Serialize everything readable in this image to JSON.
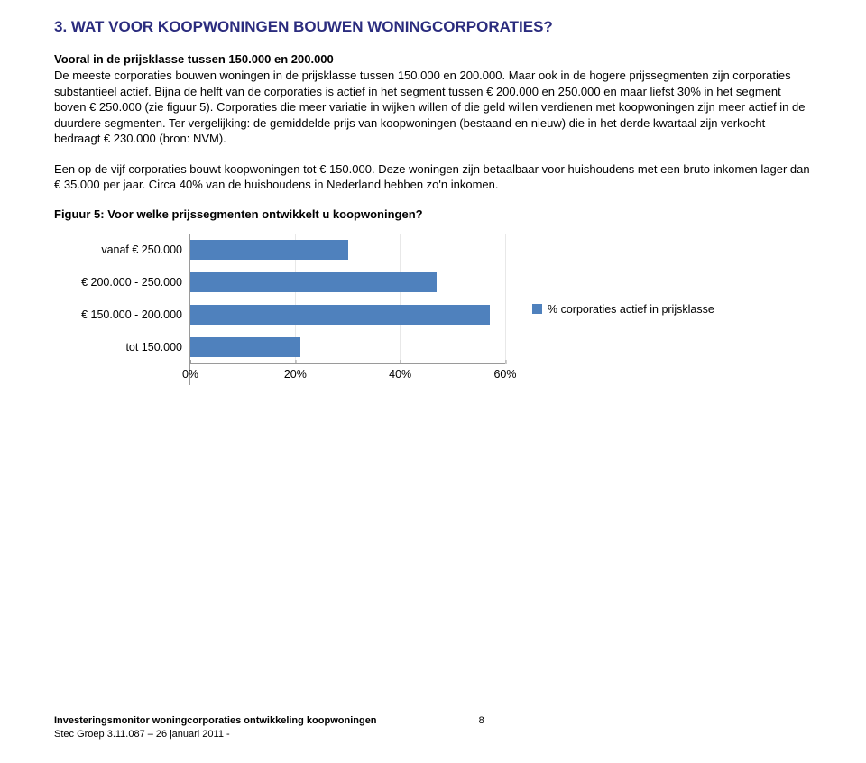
{
  "heading": "3. WAT VOOR KOOPWONINGEN BOUWEN WONINGCORPORATIES?",
  "lead": "Vooral in de prijsklasse tussen 150.000 en 200.000",
  "para1": "De meeste corporaties bouwen woningen in de prijsklasse tussen 150.000 en 200.000. Maar ook in de hogere prijssegmenten zijn corporaties substantieel actief. Bijna de helft van de corporaties is actief in het segment tussen € 200.000 en 250.000 en maar liefst 30% in het segment boven € 250.000 (zie figuur 5). Corporaties die meer variatie in wijken willen of die geld willen verdienen met koopwoningen zijn meer actief in de duurdere segmenten. Ter vergelijking: de gemiddelde prijs van koopwoningen (bestaand en nieuw) die in het derde kwartaal zijn verkocht bedraagt € 230.000 (bron: NVM).",
  "para2": "Een op de vijf corporaties bouwt koopwoningen tot € 150.000. Deze woningen zijn betaalbaar voor huishoudens met een bruto inkomen lager dan € 35.000 per jaar. Circa 40% van de huishoudens in Nederland hebben zo'n inkomen.",
  "figure_title": "Figuur 5: Voor welke prijssegmenten ontwikkelt u koopwoningen?",
  "chart": {
    "type": "bar-horizontal",
    "xmax": 60,
    "ticks": [
      0,
      20,
      40,
      60
    ],
    "tick_labels": [
      "0%",
      "20%",
      "40%",
      "60%"
    ],
    "bar_color": "#4f81bd",
    "grid_color": "#e8e8e8",
    "axis_color": "#9a9a9a",
    "label_fontsize": 12.5,
    "categories": [
      {
        "label": "vanaf € 250.000",
        "value": 30
      },
      {
        "label": "€ 200.000 - 250.000",
        "value": 47
      },
      {
        "label": "€ 150.000 - 200.000",
        "value": 57
      },
      {
        "label": "tot 150.000",
        "value": 21
      }
    ],
    "legend": "% corporaties actief in prijsklasse"
  },
  "footer": {
    "line1": "Investeringsmonitor woningcorporaties ontwikkeling koopwoningen",
    "page": "8",
    "line2": "Stec Groep 3.11.087 – 26 januari 2011 -"
  },
  "colors": {
    "heading": "#2b2c7e",
    "text": "#000000",
    "background": "#ffffff"
  }
}
